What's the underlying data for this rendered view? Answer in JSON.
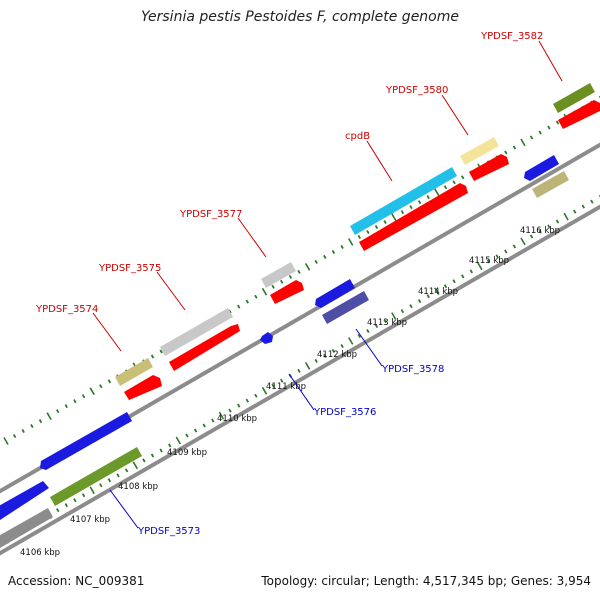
{
  "title": "Yersinia pestis Pestoides F, complete genome",
  "footer": {
    "accession": "Accession: NC_009381",
    "summary": "Topology: circular; Length: 4,517,345 bp; Genes: 3,954"
  },
  "colors": {
    "top_label": "#cc0000",
    "bottom_label": "#0000cc",
    "backbone": "#8c8c8c",
    "tick": "#2a7a2a",
    "cds": "#ff0000"
  },
  "kbp_labels": [
    "4106 kbp",
    "4107 kbp",
    "4108 kbp",
    "4109 kbp",
    "4110 kbp",
    "4111 kbp",
    "4112 kbp",
    "4113 kbp",
    "4114 kbp",
    "4115 kbp",
    "4116 kbp"
  ],
  "top_labels": [
    "YPDSF_3574",
    "YPDSF_3575",
    "YPDSF_3577",
    "cpdB",
    "YPDSF_3580",
    "YPDSF_3582"
  ],
  "bottom_labels": [
    "YPDSF_3573",
    "YPDSF_3576",
    "YPDSF_3578"
  ]
}
